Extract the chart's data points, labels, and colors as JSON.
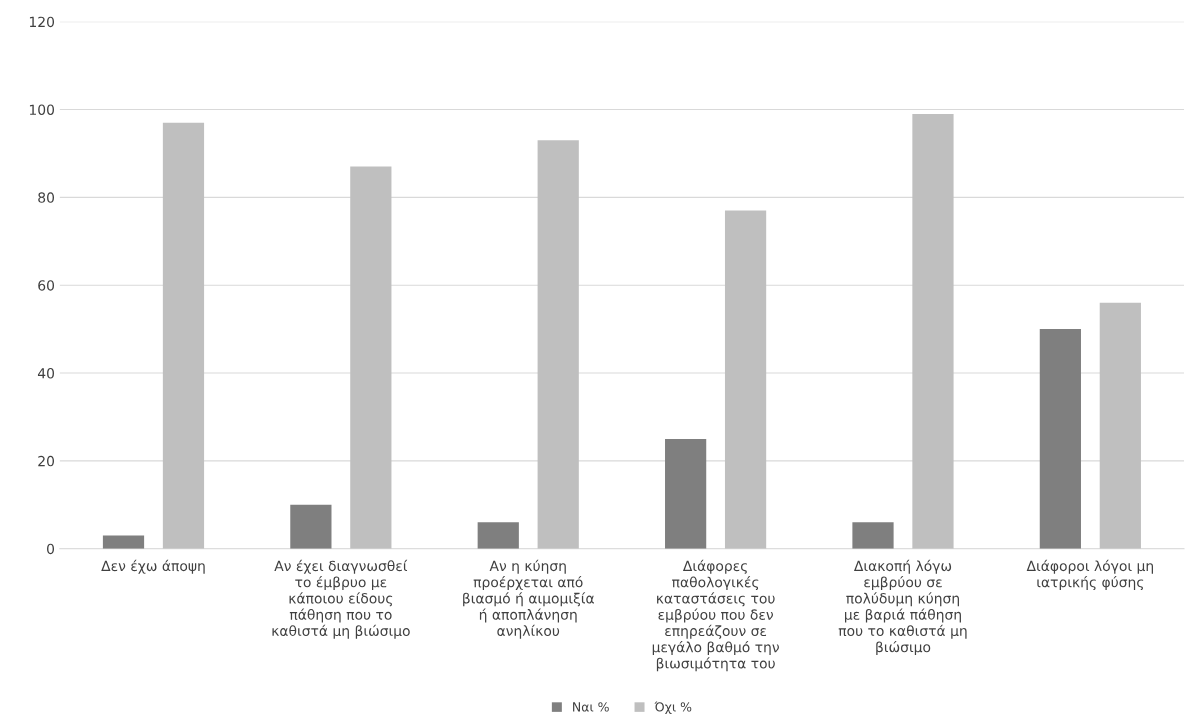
{
  "chart_data": {
    "type": "bar",
    "categories": [
      "Δεν έχω άποψη",
      "Αν έχει διαγνωσθεί\nτο έμβρυο με\nκάποιου είδους\nπάθηση που το\nκαθιστά μη βιώσιμο",
      "Αν η κύηση\nπροέρχεται από\nβιασμό ή αιμομιξία\nή αποπλάνηση\nανηλίκου",
      "Διάφορες\nπαθολογικές\nκαταστάσεις του\nεμβρύου που δεν\nεπηρεάζουν σε\nμεγάλο βαθμό την\nβιωσιμότητα του",
      "Διακοπή λόγω\nεμβρύου σε\nπολύδυμη κύηση\nμε βαριά πάθηση\nπου το καθιστά μη\nβιώσιμο",
      "Διάφοροι λόγοι μη\nιατρικής φύσης"
    ],
    "series": [
      {
        "name": "Ναι %",
        "color": "#7f7f7f",
        "values": [
          3,
          10,
          6,
          25,
          6,
          50
        ]
      },
      {
        "name": "Όχι %",
        "color": "#bfbfbf",
        "values": [
          97,
          87,
          93,
          77,
          99,
          56
        ]
      }
    ],
    "ylim": [
      0,
      120
    ],
    "yticks": [
      0,
      20,
      40,
      60,
      80,
      100,
      120
    ],
    "grid": "y",
    "legend": "bottom"
  }
}
